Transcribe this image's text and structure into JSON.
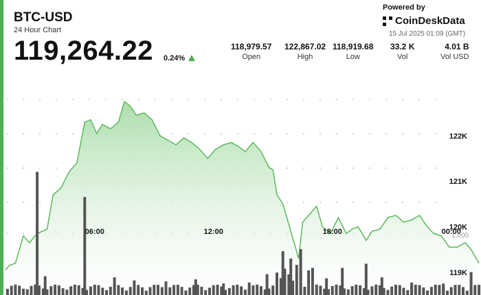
{
  "header": {
    "pair": "BTC-USD",
    "subtitle": "24 Hour Chart",
    "price": "119,264.22",
    "change": "0.24%"
  },
  "stats": [
    {
      "value": "118,979.57",
      "label": "Open"
    },
    {
      "value": "122,867.02",
      "label": "High"
    },
    {
      "value": "118,919.68",
      "label": "Low"
    },
    {
      "value": "33.2 K",
      "label": "Vol"
    },
    {
      "value": "4.01 B",
      "label": "Vol USD"
    }
  ],
  "branding": {
    "powered": "Powered by",
    "name": "CoinDeskData",
    "timestamp": "15 Jul 2025 01:09 (GMT)"
  },
  "colors": {
    "accent": "#4caf50",
    "line": "#5cb85c",
    "fill": "#c9ebc9",
    "bars": "#555555"
  },
  "chart_data": {
    "type": "area",
    "title": "",
    "xlabel": "",
    "ylabel": "",
    "x_range": [
      0,
      24
    ],
    "ylim": [
      118500,
      123700
    ],
    "y_ticks": [
      {
        "value": 119000,
        "label": "119K"
      },
      {
        "value": 120000,
        "label": "120K"
      },
      {
        "value": 121000,
        "label": "121K"
      },
      {
        "value": 122000,
        "label": "122K"
      }
    ],
    "x_ticks": [
      {
        "value": 4.5,
        "label": "06:00"
      },
      {
        "value": 10.5,
        "label": "12:00"
      },
      {
        "value": 16.5,
        "label": "18:00"
      },
      {
        "value": 22.5,
        "label": "00:00"
      }
    ],
    "grid": false,
    "series": [
      {
        "values": [
          [
            0.0,
            119050
          ],
          [
            0.2,
            119150
          ],
          [
            0.5,
            119200
          ],
          [
            0.9,
            119800
          ],
          [
            1.2,
            119650
          ],
          [
            1.6,
            119850
          ],
          [
            2.1,
            119950
          ],
          [
            2.4,
            120700
          ],
          [
            2.8,
            120850
          ],
          [
            3.2,
            121200
          ],
          [
            3.6,
            121400
          ],
          [
            4.0,
            122300
          ],
          [
            4.3,
            122350
          ],
          [
            4.6,
            122050
          ],
          [
            4.9,
            122250
          ],
          [
            5.3,
            122150
          ],
          [
            5.7,
            122300
          ],
          [
            6.0,
            122750
          ],
          [
            6.3,
            122650
          ],
          [
            6.6,
            122450
          ],
          [
            7.0,
            122500
          ],
          [
            7.4,
            122350
          ],
          [
            7.8,
            122000
          ],
          [
            8.2,
            121900
          ],
          [
            8.6,
            121800
          ],
          [
            9.0,
            121950
          ],
          [
            9.4,
            121850
          ],
          [
            9.8,
            121700
          ],
          [
            10.2,
            121500
          ],
          [
            10.6,
            121700
          ],
          [
            11.0,
            121800
          ],
          [
            11.4,
            121850
          ],
          [
            11.8,
            121750
          ],
          [
            12.1,
            121650
          ],
          [
            12.5,
            121850
          ],
          [
            12.9,
            121650
          ],
          [
            13.3,
            121300
          ],
          [
            13.5,
            121250
          ],
          [
            13.7,
            120700
          ],
          [
            14.0,
            120500
          ],
          [
            14.4,
            119900
          ],
          [
            14.8,
            119300
          ],
          [
            15.0,
            120100
          ],
          [
            15.4,
            120300
          ],
          [
            15.7,
            120450
          ],
          [
            16.0,
            120000
          ],
          [
            16.4,
            119850
          ],
          [
            16.8,
            120200
          ],
          [
            17.2,
            119850
          ],
          [
            17.5,
            119950
          ],
          [
            17.8,
            120000
          ],
          [
            18.2,
            119700
          ],
          [
            18.5,
            119900
          ],
          [
            18.9,
            119950
          ],
          [
            19.3,
            120200
          ],
          [
            19.7,
            120250
          ],
          [
            20.1,
            120100
          ],
          [
            20.5,
            120150
          ],
          [
            20.9,
            120250
          ],
          [
            21.2,
            120050
          ],
          [
            21.6,
            119850
          ],
          [
            22.0,
            119800
          ],
          [
            22.4,
            119550
          ],
          [
            22.8,
            119550
          ],
          [
            23.2,
            119650
          ],
          [
            23.5,
            119500
          ],
          [
            23.9,
            119200
          ]
        ]
      }
    ],
    "volume": {
      "label": "1,000",
      "max": 1250,
      "bars": [
        {
          "x": 1.6,
          "value": 1180
        },
        {
          "x": 2.0,
          "value": 180
        },
        {
          "x": 4.0,
          "value": 940
        },
        {
          "x": 5.5,
          "value": 170
        },
        {
          "x": 6.5,
          "value": 140
        },
        {
          "x": 8.1,
          "value": 130
        },
        {
          "x": 9.6,
          "value": 150
        },
        {
          "x": 11.0,
          "value": 110
        },
        {
          "x": 12.3,
          "value": 120
        },
        {
          "x": 13.2,
          "value": 200
        },
        {
          "x": 14.0,
          "value": 420
        },
        {
          "x": 14.4,
          "value": 350
        },
        {
          "x": 14.9,
          "value": 440
        },
        {
          "x": 16.2,
          "value": 160
        },
        {
          "x": 17.0,
          "value": 260
        },
        {
          "x": 18.2,
          "value": 300
        },
        {
          "x": 19.0,
          "value": 170
        },
        {
          "x": 20.5,
          "value": 120
        },
        {
          "x": 22.1,
          "value": 110
        },
        {
          "x": 23.5,
          "value": 220
        }
      ]
    }
  }
}
